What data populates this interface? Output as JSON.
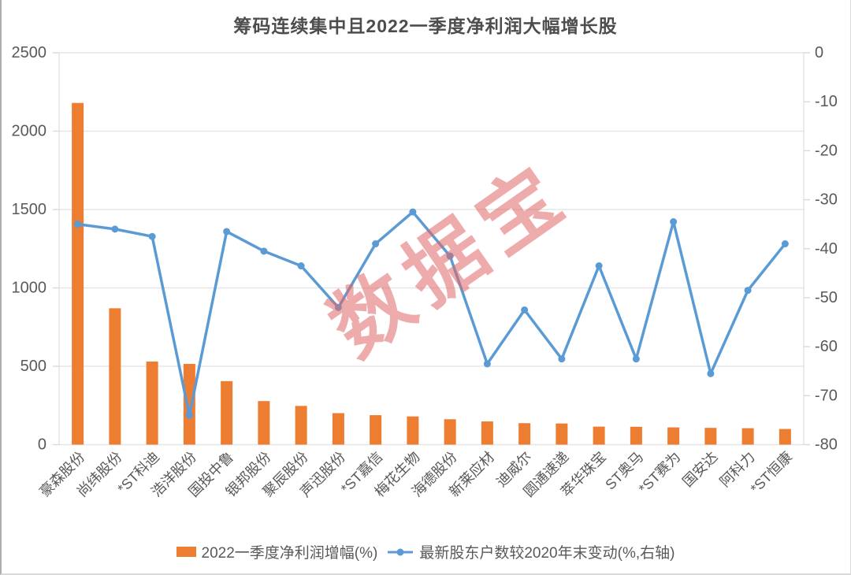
{
  "title": "筹码连续集中且2022一季度净利润大幅增长股",
  "watermark": "数据宝",
  "colors": {
    "bar": "#ED7D31",
    "line": "#5B9BD5",
    "grid": "#E6E6E6",
    "axis_line": "#D9D9D9",
    "axis_text": "#595959",
    "watermark": "rgba(224,102,102,0.55)"
  },
  "legend": {
    "position": "bottom",
    "items": [
      {
        "label": "2022一季度净利润增幅(%)",
        "marker": "bar-swatch"
      },
      {
        "label": "最新股东户数较2020年末变动(%,右轴)",
        "marker": "line-marker"
      }
    ]
  },
  "chart_data": {
    "type": "bar",
    "subtype": "combo bar+line, dual axis",
    "title": "筹码连续集中且2022一季度净利润大幅增长股",
    "grid": "horizontal-on",
    "legend_position": "bottom",
    "categories": [
      "豪森股份",
      "尚纬股份",
      "*ST科迪",
      "浩洋股份",
      "国投中鲁",
      "银邦股份",
      "聚辰股份",
      "声迅股份",
      "*ST嘉信",
      "梅花生物",
      "海德股份",
      "新莱应材",
      "迪威尔",
      "圆通速递",
      "萃华珠宝",
      "ST奥马",
      "*ST赛为",
      "国安达",
      "阿科力",
      "*ST恒康"
    ],
    "series": [
      {
        "name": "2022一季度净利润增幅(%)",
        "type": "bar",
        "axis": "left",
        "values": [
          2180,
          870,
          530,
          515,
          405,
          278,
          247,
          201,
          188,
          180,
          162,
          148,
          137,
          135,
          115,
          114,
          110,
          107,
          105,
          100
        ]
      },
      {
        "name": "最新股东户数较2020年末变动(%,右轴)",
        "type": "line",
        "axis": "right",
        "values": [
          -35,
          -36,
          -37.5,
          -74,
          -36.5,
          -40.5,
          -43.5,
          -52,
          -39,
          -32.5,
          -41.5,
          -63.5,
          -52.5,
          -62.5,
          -43.5,
          -62.5,
          -34.5,
          -65.5,
          -48.5,
          -39
        ]
      }
    ],
    "left_axis": {
      "label": "",
      "min": 0,
      "max": 2500,
      "step": 500,
      "ticks": [
        "2500",
        "2000",
        "1500",
        "1000",
        "500",
        "0"
      ]
    },
    "right_axis": {
      "label": "",
      "min": -80,
      "max": 0,
      "step": 10,
      "ticks": [
        "0",
        "-10",
        "-20",
        "-30",
        "-40",
        "-50",
        "-60",
        "-70",
        "-80"
      ]
    }
  }
}
